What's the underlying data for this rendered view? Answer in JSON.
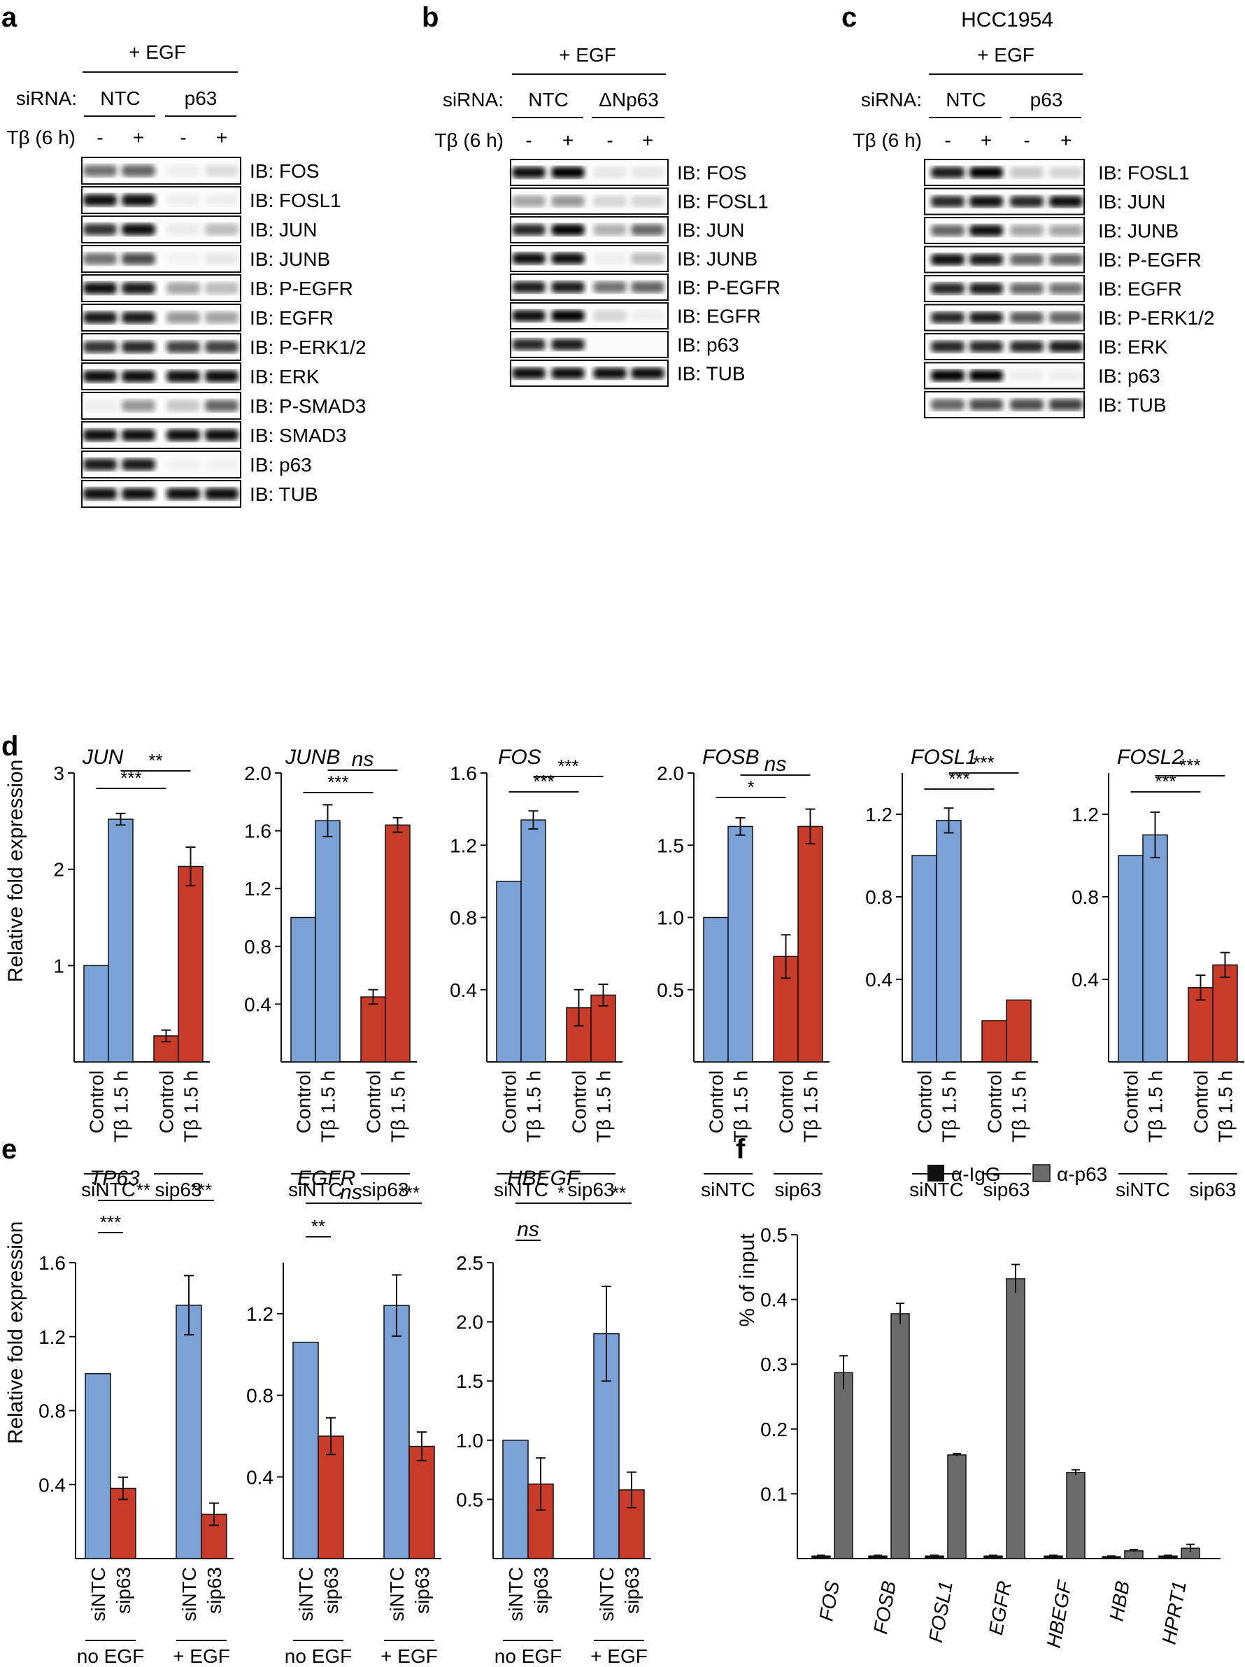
{
  "colors": {
    "blue": "#7aa2d6",
    "red": "#c73b28",
    "igg": "#111111",
    "p63": "#6b6b6b",
    "axis": "#111111"
  },
  "panel_a": {
    "letter": "a",
    "treatment": "+ EGF",
    "sirna_label": "siRNA:",
    "groups": [
      "NTC",
      "p63"
    ],
    "tb_label": "Tβ (6 h)",
    "tb_marks": [
      "-",
      "+",
      "-",
      "+"
    ],
    "blots": [
      "IB: FOS",
      "IB: FOSL1",
      "IB: JUN",
      "IB: JUNB",
      "IB: P-EGFR",
      "IB: EGFR",
      "IB: P-ERK1/2",
      "IB: ERK",
      "IB: P-SMAD3",
      "IB: SMAD3",
      "IB: p63",
      "IB: TUB"
    ]
  },
  "panel_b": {
    "letter": "b",
    "treatment": "+ EGF",
    "sirna_label": "siRNA:",
    "groups": [
      "NTC",
      "ΔNp63"
    ],
    "tb_label": "Tβ (6 h)",
    "tb_marks": [
      "-",
      "+",
      "-",
      "+"
    ],
    "blots": [
      "IB: FOS",
      "IB: FOSL1",
      "IB: JUN",
      "IB: JUNB",
      "IB: P-EGFR",
      "IB: EGFR",
      "IB: p63",
      "IB: TUB"
    ]
  },
  "panel_c": {
    "letter": "c",
    "cell_line": "HCC1954",
    "treatment": "+ EGF",
    "sirna_label": "siRNA:",
    "groups": [
      "NTC",
      "p63"
    ],
    "tb_label": "Tβ (6 h)",
    "tb_marks": [
      "-",
      "+",
      "-",
      "+"
    ],
    "blots": [
      "IB: FOSL1",
      "IB: JUN",
      "IB: JUNB",
      "IB: P-EGFR",
      "IB: EGFR",
      "IB: P-ERK1/2",
      "IB: ERK",
      "IB: p63",
      "IB: TUB"
    ]
  },
  "panel_d": {
    "letter": "d",
    "ylabel": "Relative fold expression",
    "bar_labels": [
      "Control",
      "Tβ 1.5 h",
      "Control",
      "Tβ 1.5 h"
    ],
    "group_labels": [
      "siNTC",
      "sip63"
    ]
  },
  "panel_e": {
    "letter": "e",
    "ylabel": "Relative fold expression",
    "bar_labels": [
      "siNTC",
      "sip63",
      "siNTC",
      "sip63"
    ],
    "group_labels": [
      "no EGF",
      "+ EGF"
    ]
  },
  "panel_f": {
    "letter": "f",
    "ylabel": "% of input",
    "legend": [
      "α-IgG",
      "α-p63"
    ]
  },
  "chart_data": [
    {
      "id": "d-JUN",
      "type": "bar",
      "title": "JUN",
      "categories": [
        "siNTC Control",
        "siNTC Tβ 1.5 h",
        "sip63 Control",
        "sip63 Tβ 1.5 h"
      ],
      "values": [
        1.0,
        2.52,
        0.27,
        2.03
      ],
      "errors": [
        0,
        0.06,
        0.06,
        0.2
      ],
      "ylim": [
        0,
        3
      ],
      "yticks": [
        1,
        2,
        3
      ],
      "ytick_labels": [
        "1",
        "2",
        "3"
      ],
      "significance": [
        {
          "label": "***",
          "from": 0,
          "to": 2
        },
        {
          "label": "**",
          "from": 1,
          "to": 3
        }
      ]
    },
    {
      "id": "d-JUNB",
      "type": "bar",
      "title": "JUNB",
      "categories": [
        "siNTC Control",
        "siNTC Tβ 1.5 h",
        "sip63 Control",
        "sip63 Tβ 1.5 h"
      ],
      "values": [
        1.0,
        1.67,
        0.45,
        1.64
      ],
      "errors": [
        0,
        0.11,
        0.05,
        0.05
      ],
      "ylim": [
        0,
        2.0
      ],
      "yticks": [
        0.4,
        0.8,
        1.2,
        1.6,
        2.0
      ],
      "ytick_labels": [
        "0.4",
        "0.8",
        "1.2",
        "1.6",
        "2.0"
      ],
      "significance": [
        {
          "label": "***",
          "from": 0,
          "to": 2
        },
        {
          "label": "ns",
          "from": 1,
          "to": 3
        }
      ]
    },
    {
      "id": "d-FOS",
      "type": "bar",
      "title": "FOS",
      "categories": [
        "siNTC Control",
        "siNTC Tβ 1.5 h",
        "sip63 Control",
        "sip63 Tβ 1.5 h"
      ],
      "values": [
        1.0,
        1.34,
        0.3,
        0.37
      ],
      "errors": [
        0,
        0.05,
        0.1,
        0.06
      ],
      "ylim": [
        0,
        1.6
      ],
      "yticks": [
        0.4,
        0.8,
        1.2,
        1.6
      ],
      "ytick_labels": [
        "0.4",
        "0.8",
        "1.2",
        "1.6"
      ],
      "significance": [
        {
          "label": "***",
          "from": 0,
          "to": 2
        },
        {
          "label": "***",
          "from": 1,
          "to": 3
        }
      ]
    },
    {
      "id": "d-FOSB",
      "type": "bar",
      "title": "FOSB",
      "categories": [
        "siNTC Control",
        "siNTC Tβ 1.5 h",
        "sip63 Control",
        "sip63 Tβ 1.5 h"
      ],
      "values": [
        1.0,
        1.63,
        0.73,
        1.63
      ],
      "errors": [
        0,
        0.06,
        0.15,
        0.12
      ],
      "ylim": [
        0,
        2.0
      ],
      "yticks": [
        0.5,
        1.0,
        1.5,
        2.0
      ],
      "ytick_labels": [
        "0.5",
        "1.0",
        "1.5",
        "2.0"
      ],
      "significance": [
        {
          "label": "*",
          "from": 0,
          "to": 2
        },
        {
          "label": "ns",
          "from": 1,
          "to": 3
        }
      ]
    },
    {
      "id": "d-FOSL1",
      "type": "bar",
      "title": "FOSL1",
      "categories": [
        "siNTC Control",
        "siNTC Tβ 1.5 h",
        "sip63 Control",
        "sip63 Tβ 1.5 h"
      ],
      "values": [
        1.0,
        1.17,
        0.2,
        0.3
      ],
      "errors": [
        0,
        0.06,
        0,
        0
      ],
      "ylim": [
        0,
        1.4
      ],
      "yticks": [
        0.4,
        0.8,
        1.2
      ],
      "ytick_labels": [
        "0.4",
        "0.8",
        "1.2"
      ],
      "significance": [
        {
          "label": "***",
          "from": 0,
          "to": 2
        },
        {
          "label": "***",
          "from": 1,
          "to": 3
        }
      ]
    },
    {
      "id": "d-FOSL2",
      "type": "bar",
      "title": "FOSL2",
      "categories": [
        "siNTC Control",
        "siNTC Tβ 1.5 h",
        "sip63 Control",
        "sip63 Tβ 1.5 h"
      ],
      "values": [
        1.0,
        1.1,
        0.36,
        0.47
      ],
      "errors": [
        0,
        0.11,
        0.06,
        0.06
      ],
      "ylim": [
        0,
        1.4
      ],
      "yticks": [
        0.4,
        0.8,
        1.2
      ],
      "ytick_labels": [
        "0.4",
        "0.8",
        "1.2"
      ],
      "significance": [
        {
          "label": "***",
          "from": 0,
          "to": 2
        },
        {
          "label": "***",
          "from": 1,
          "to": 3
        }
      ]
    },
    {
      "id": "e-TP63",
      "type": "bar",
      "title": "TP63",
      "categories": [
        "no EGF siNTC",
        "no EGF sip63",
        "+ EGF siNTC",
        "+ EGF sip63"
      ],
      "values": [
        1.0,
        0.38,
        1.37,
        0.24
      ],
      "errors": [
        0,
        0.06,
        0.16,
        0.06
      ],
      "ylim": [
        0,
        1.6
      ],
      "yticks": [
        0.4,
        0.8,
        1.2,
        1.6
      ],
      "ytick_labels": [
        "0.4",
        "0.8",
        "1.2",
        "1.6"
      ],
      "significance": [
        {
          "label": "***",
          "from": 0,
          "to": 1
        },
        {
          "label": "**",
          "from": 0,
          "to": 2
        },
        {
          "label": "***",
          "from": 2,
          "to": 3
        }
      ]
    },
    {
      "id": "e-EGFR",
      "type": "bar",
      "title": "EGFR",
      "categories": [
        "no EGF siNTC",
        "no EGF sip63",
        "+ EGF siNTC",
        "+ EGF sip63"
      ],
      "values": [
        1.06,
        0.6,
        1.24,
        0.55
      ],
      "errors": [
        0,
        0.09,
        0.15,
        0.07
      ],
      "ylim": [
        0,
        1.45
      ],
      "yticks": [
        0.4,
        0.8,
        1.2
      ],
      "ytick_labels": [
        "0.4",
        "0.8",
        "1.2"
      ],
      "significance": [
        {
          "label": "**",
          "from": 0,
          "to": 1
        },
        {
          "label": "ns",
          "from": 0,
          "to": 2
        },
        {
          "label": "***",
          "from": 2,
          "to": 3
        }
      ]
    },
    {
      "id": "e-HBEGF",
      "type": "bar",
      "title": "HBEGF",
      "categories": [
        "no EGF siNTC",
        "no EGF sip63",
        "+ EGF siNTC",
        "+ EGF sip63"
      ],
      "values": [
        1.0,
        0.63,
        1.9,
        0.58
      ],
      "errors": [
        0,
        0.22,
        0.4,
        0.15
      ],
      "ylim": [
        0,
        2.5
      ],
      "yticks": [
        0.5,
        1.0,
        1.5,
        2.0,
        2.5
      ],
      "ytick_labels": [
        "0.5",
        "1.0",
        "1.5",
        "2.0",
        "2.5"
      ],
      "significance": [
        {
          "label": "ns",
          "from": 0,
          "to": 1
        },
        {
          "label": "*",
          "from": 0,
          "to": 2
        },
        {
          "label": "**",
          "from": 2,
          "to": 3
        }
      ]
    },
    {
      "id": "f-ChIP",
      "type": "bar",
      "ylabel": "% of input",
      "categories": [
        "FOS",
        "FOSB",
        "FOSL1",
        "EGFR",
        "HBEGF",
        "HBB",
        "HPRT1"
      ],
      "series": [
        {
          "name": "α-IgG",
          "values": [
            0.004,
            0.004,
            0.004,
            0.004,
            0.004,
            0.003,
            0.004
          ],
          "errors": [
            0.001,
            0.001,
            0.001,
            0.001,
            0.001,
            0.001,
            0.001
          ]
        },
        {
          "name": "α-p63",
          "values": [
            0.287,
            0.378,
            0.16,
            0.432,
            0.133,
            0.012,
            0.016
          ],
          "errors": [
            0.026,
            0.016,
            0.002,
            0.022,
            0.004,
            0.002,
            0.006
          ]
        }
      ],
      "ylim": [
        0,
        0.5
      ],
      "yticks": [
        0.1,
        0.2,
        0.3,
        0.4,
        0.5
      ],
      "ytick_labels": [
        "0.1",
        "0.2",
        "0.3",
        "0.4",
        "0.5"
      ]
    }
  ]
}
